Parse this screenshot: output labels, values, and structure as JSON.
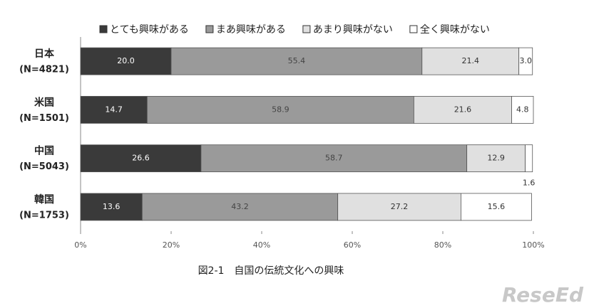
{
  "chart_data": {
    "type": "stacked_barh",
    "categories": [
      "日本",
      "米国",
      "中国",
      "韓国"
    ],
    "category_notes": [
      "(N=4821)",
      "(N=1501)",
      "(N=5043)",
      "(N=1753)"
    ],
    "series": [
      {
        "name": "とても興味がある",
        "color": "#3a3a3a",
        "label_color": "#ffffff",
        "values": [
          20,
          14.7,
          26.6,
          13.6
        ],
        "value_labels": [
          "20.0",
          "14.7",
          "26.6",
          "13.6"
        ]
      },
      {
        "name": "まあ興味がある",
        "color": "#9a9a9a",
        "label_color": "#444444",
        "values": [
          55.4,
          58.9,
          58.7,
          43.2
        ],
        "value_labels": [
          "55.4",
          "58.9",
          "58.7",
          "43.2"
        ]
      },
      {
        "name": "あまり興味がない",
        "color": "#e0e0e0",
        "label_color": "#333333",
        "values": [
          21.4,
          21.6,
          12.9,
          27.2
        ],
        "value_labels": [
          "21.4",
          "21.6",
          "12.9",
          "27.2"
        ]
      },
      {
        "name": "全く興味がない",
        "color": "#ffffff",
        "label_color": "#333333",
        "values": [
          3,
          4.8,
          1.6,
          15.6
        ],
        "value_labels": [
          "3.0",
          "4.8",
          "1.6",
          "15.6"
        ]
      }
    ],
    "xlim": [
      0,
      100
    ],
    "xticks": [
      {
        "value": 0,
        "label": "0%"
      },
      {
        "value": 20,
        "label": "20%"
      },
      {
        "value": 40,
        "label": "40%"
      },
      {
        "value": 60,
        "label": "60%"
      },
      {
        "value": 80,
        "label": "80%"
      },
      {
        "value": 100,
        "label": "100%"
      }
    ],
    "caption": "図2-1　自国の伝統文化への興味",
    "watermark": "ReseEd"
  }
}
